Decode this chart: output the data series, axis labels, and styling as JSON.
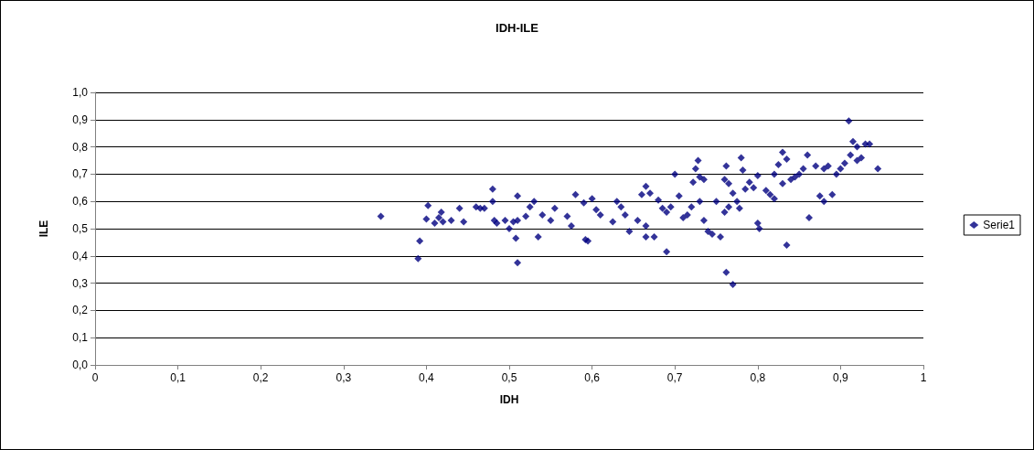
{
  "chart_data": {
    "type": "scatter",
    "title": "IDH-ILE",
    "xlabel": "IDH",
    "ylabel": "ILE",
    "marker": "diamond",
    "grid": "y",
    "legend": "right",
    "xlim": [
      0,
      1
    ],
    "xticks": [
      0,
      {
        "value": 0.1,
        "label": "0,1"
      },
      {
        "value": 0.2,
        "label": "0,2"
      },
      {
        "value": 0.3,
        "label": "0,3"
      },
      {
        "value": 0.4,
        "label": "0,4"
      },
      {
        "value": 0.5,
        "label": "0,5"
      },
      {
        "value": 0.6,
        "label": "0,6"
      },
      {
        "value": 0.7,
        "label": "0,7"
      },
      {
        "value": 0.8,
        "label": "0,8"
      },
      {
        "value": 0.9,
        "label": "0,9"
      },
      1
    ],
    "ylim": [
      0,
      1
    ],
    "yticks": [
      {
        "value": 0,
        "label": "0,0"
      },
      {
        "value": 0.1,
        "label": "0,1"
      },
      {
        "value": 0.2,
        "label": "0,2"
      },
      {
        "value": 0.3,
        "label": "0,3"
      },
      {
        "value": 0.4,
        "label": "0,4"
      },
      {
        "value": 0.5,
        "label": "0,5"
      },
      {
        "value": 0.6,
        "label": "0,6"
      },
      {
        "value": 0.7,
        "label": "0,7"
      },
      {
        "value": 0.8,
        "label": "0,8"
      },
      {
        "value": 0.9,
        "label": "0,9"
      },
      {
        "value": 1,
        "label": "1,0"
      }
    ],
    "series": [
      {
        "name": "Serie1",
        "color": "#000080",
        "x": [
          0.345,
          0.39,
          0.392,
          0.4,
          0.402,
          0.41,
          0.415,
          0.418,
          0.42,
          0.43,
          0.44,
          0.445,
          0.46,
          0.465,
          0.47,
          0.48,
          0.48,
          0.485,
          0.482,
          0.5,
          0.495,
          0.505,
          0.51,
          0.508,
          0.51,
          0.51,
          0.52,
          0.525,
          0.53,
          0.535,
          0.54,
          0.55,
          0.555,
          0.57,
          0.575,
          0.58,
          0.59,
          0.592,
          0.595,
          0.6,
          0.605,
          0.61,
          0.625,
          0.63,
          0.635,
          0.64,
          0.645,
          0.655,
          0.66,
          0.665,
          0.67,
          0.665,
          0.665,
          0.675,
          0.68,
          0.685,
          0.69,
          0.69,
          0.695,
          0.7,
          0.705,
          0.71,
          0.715,
          0.72,
          0.722,
          0.725,
          0.728,
          0.73,
          0.735,
          0.73,
          0.735,
          0.74,
          0.745,
          0.75,
          0.755,
          0.76,
          0.762,
          0.765,
          0.77,
          0.765,
          0.76,
          0.762,
          0.77,
          0.775,
          0.778,
          0.78,
          0.782,
          0.785,
          0.79,
          0.795,
          0.8,
          0.8,
          0.802,
          0.81,
          0.815,
          0.82,
          0.82,
          0.825,
          0.83,
          0.835,
          0.83,
          0.835,
          0.84,
          0.845,
          0.85,
          0.855,
          0.86,
          0.862,
          0.87,
          0.875,
          0.88,
          0.88,
          0.885,
          0.89,
          0.895,
          0.9,
          0.905,
          0.91,
          0.912,
          0.915,
          0.92,
          0.92,
          0.925,
          0.93,
          0.935,
          0.945
        ],
        "values": [
          0.545,
          0.39,
          0.455,
          0.535,
          0.585,
          0.52,
          0.54,
          0.56,
          0.525,
          0.53,
          0.575,
          0.525,
          0.58,
          0.575,
          0.575,
          0.645,
          0.6,
          0.52,
          0.53,
          0.5,
          0.53,
          0.525,
          0.53,
          0.465,
          0.375,
          0.62,
          0.545,
          0.58,
          0.6,
          0.47,
          0.55,
          0.53,
          0.575,
          0.545,
          0.51,
          0.625,
          0.595,
          0.46,
          0.455,
          0.61,
          0.57,
          0.55,
          0.525,
          0.6,
          0.58,
          0.55,
          0.49,
          0.53,
          0.625,
          0.655,
          0.63,
          0.51,
          0.47,
          0.47,
          0.605,
          0.575,
          0.415,
          0.56,
          0.58,
          0.7,
          0.62,
          0.54,
          0.55,
          0.58,
          0.67,
          0.72,
          0.75,
          0.69,
          0.68,
          0.6,
          0.53,
          0.49,
          0.48,
          0.6,
          0.47,
          0.68,
          0.73,
          0.665,
          0.63,
          0.58,
          0.56,
          0.34,
          0.295,
          0.6,
          0.575,
          0.76,
          0.715,
          0.645,
          0.67,
          0.65,
          0.695,
          0.52,
          0.5,
          0.64,
          0.625,
          0.61,
          0.7,
          0.735,
          0.78,
          0.755,
          0.665,
          0.44,
          0.68,
          0.69,
          0.7,
          0.72,
          0.77,
          0.54,
          0.73,
          0.62,
          0.6,
          0.72,
          0.73,
          0.625,
          0.7,
          0.72,
          0.74,
          0.895,
          0.77,
          0.82,
          0.8,
          0.75,
          0.76,
          0.81,
          0.81,
          0.72
        ]
      }
    ]
  }
}
